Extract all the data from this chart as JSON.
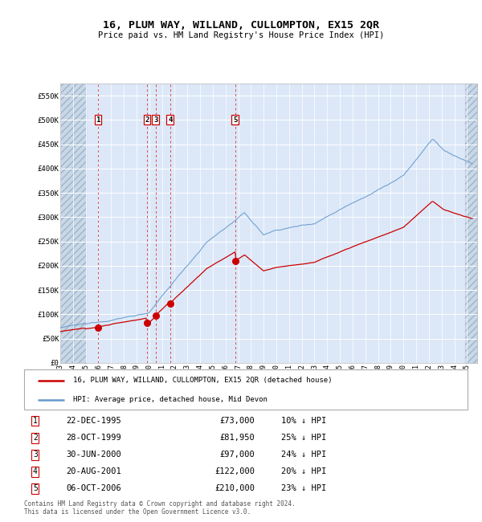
{
  "title": "16, PLUM WAY, WILLAND, CULLOMPTON, EX15 2QR",
  "subtitle": "Price paid vs. HM Land Registry's House Price Index (HPI)",
  "ylim": [
    0,
    575000
  ],
  "yticks": [
    0,
    50000,
    100000,
    150000,
    200000,
    250000,
    300000,
    350000,
    400000,
    450000,
    500000,
    550000
  ],
  "ytick_labels": [
    "£0",
    "£50K",
    "£100K",
    "£150K",
    "£200K",
    "£250K",
    "£300K",
    "£350K",
    "£400K",
    "£450K",
    "£500K",
    "£550K"
  ],
  "xlim_start": 1993.0,
  "xlim_end": 2025.8,
  "plot_bg_color": "#dce8f8",
  "grid_color": "#ffffff",
  "transactions": [
    {
      "num": 1,
      "year": 1995.97,
      "price": 73000,
      "label": "1",
      "date": "22-DEC-1995",
      "price_str": "£73,000",
      "pct": "10% ↓ HPI"
    },
    {
      "num": 2,
      "year": 1999.83,
      "price": 81950,
      "label": "2",
      "date": "28-OCT-1999",
      "price_str": "£81,950",
      "pct": "25% ↓ HPI"
    },
    {
      "num": 3,
      "year": 2000.5,
      "price": 97000,
      "label": "3",
      "date": "30-JUN-2000",
      "price_str": "£97,000",
      "pct": "24% ↓ HPI"
    },
    {
      "num": 4,
      "year": 2001.64,
      "price": 122000,
      "label": "4",
      "date": "20-AUG-2001",
      "price_str": "£122,000",
      "pct": "20% ↓ HPI"
    },
    {
      "num": 5,
      "year": 2006.76,
      "price": 210000,
      "label": "5",
      "date": "06-OCT-2006",
      "price_str": "£210,000",
      "pct": "23% ↓ HPI"
    }
  ],
  "red_line_color": "#cc0000",
  "blue_line_color": "#6699cc",
  "legend_line1": "16, PLUM WAY, WILLAND, CULLOMPTON, EX15 2QR (detached house)",
  "legend_line2": "HPI: Average price, detached house, Mid Devon",
  "footer": "Contains HM Land Registry data © Crown copyright and database right 2024.\nThis data is licensed under the Open Government Licence v3.0.",
  "xtick_years": [
    1993,
    1994,
    1995,
    1996,
    1997,
    1998,
    1999,
    2000,
    2001,
    2002,
    2003,
    2004,
    2005,
    2006,
    2007,
    2008,
    2009,
    2010,
    2011,
    2012,
    2013,
    2014,
    2015,
    2016,
    2017,
    2018,
    2019,
    2020,
    2021,
    2022,
    2023,
    2024,
    2025
  ]
}
